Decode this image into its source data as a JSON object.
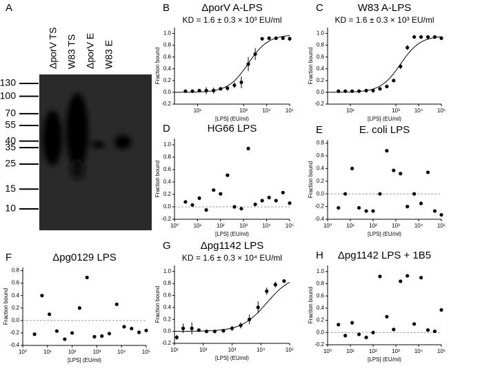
{
  "blot": {
    "panel": "A",
    "lanes": [
      "ΔporV TS",
      "W83 TS",
      "ΔporV E",
      "W83 E"
    ],
    "markers": [
      130,
      100,
      70,
      55,
      40,
      35,
      25,
      15,
      10
    ]
  },
  "chart_data": [
    {
      "type": "scatter",
      "panel": "B",
      "title": "ΔporV A-LPS",
      "annotation": "KD = 1.6 ± 0.3 × 10³ EU/ml",
      "x_label": "[LPS] (EU/ml)",
      "y_label": "Fraction bound",
      "color": "#000000",
      "x": [
        3,
        6,
        12,
        24,
        50,
        100,
        200,
        400,
        800,
        1600,
        3200,
        6400,
        12800,
        25600,
        51200,
        100000
      ],
      "values": [
        0.02,
        0.02,
        0.03,
        0.03,
        0.03,
        0.06,
        0.07,
        0.12,
        0.17,
        0.48,
        0.65,
        0.91,
        0.92,
        0.92,
        0.92,
        0.91
      ],
      "errors": [
        0.02,
        0.03,
        0.02,
        0.06,
        0.05,
        0.03,
        0.04,
        0.05,
        0.1,
        0.12,
        0.1,
        0.02,
        0.02,
        0.02,
        0.02,
        0.04
      ],
      "fit": {
        "kd": 1600,
        "top": 0.98
      },
      "xlim": [
        1,
        100000
      ],
      "xticks": [
        {
          "value": 10,
          "label": "10¹"
        },
        {
          "value": 1000,
          "label": "10³"
        },
        {
          "value": 10000,
          "label": "10⁴"
        },
        {
          "value": 100000,
          "label": "10⁵"
        }
      ],
      "ylim": [
        -0.2,
        1.1
      ],
      "yticks": [
        -0.2,
        {
          "value": 0,
          "label": "0.0"
        },
        0.2,
        0.4,
        0.6,
        0.8,
        {
          "value": 1,
          "label": "1.0"
        }
      ],
      "xscale": "log",
      "zero_line": false
    },
    {
      "type": "scatter",
      "panel": "C",
      "title": "W83 A-LPS",
      "annotation": "KD = 1.6 ± 0.3 × 10³ EU/ml",
      "x_label": "[LPS] (EU/ml)",
      "y_label": "Fraction bound",
      "color": "#000000",
      "x": [
        3,
        6,
        12,
        24,
        50,
        100,
        200,
        400,
        800,
        1600,
        3200,
        6400,
        12800,
        25600,
        51200,
        100000
      ],
      "values": [
        0.02,
        0.02,
        0.02,
        0.02,
        0.03,
        0.03,
        0.06,
        0.1,
        0.2,
        0.44,
        0.76,
        0.94,
        0.94,
        0.94,
        0.94,
        0.92
      ],
      "errors": [
        0.02,
        0.02,
        0.02,
        0.02,
        0.02,
        0.02,
        0.02,
        0.02,
        0.03,
        0.04,
        0.04,
        0.02,
        0.02,
        0.02,
        0.02,
        0.02
      ],
      "fit": {
        "kd": 1600,
        "top": 0.96
      },
      "xlim": [
        1,
        100000
      ],
      "xticks": [
        {
          "value": 10,
          "label": "10¹"
        },
        {
          "value": 1000,
          "label": "10³"
        },
        {
          "value": 10000,
          "label": "10⁴"
        },
        {
          "value": 100000,
          "label": "10⁵"
        }
      ],
      "ylim": [
        -0.2,
        1.1
      ],
      "yticks": [
        -0.2,
        {
          "value": 0,
          "label": "0.0"
        },
        0.2,
        0.4,
        0.6,
        0.8,
        {
          "value": 1,
          "label": "1.0"
        }
      ],
      "xscale": "log",
      "zero_line": false
    },
    {
      "type": "scatter",
      "panel": "D",
      "title": "HG66 LPS",
      "x_label": "[LPS] (EU/ml)",
      "y_label": "Fraction bound",
      "color": "#000000",
      "x": [
        3,
        6,
        12,
        24,
        50,
        100,
        200,
        400,
        800,
        1600,
        3200,
        6400,
        12800,
        25600,
        51200,
        100000
      ],
      "values": [
        0.08,
        0.03,
        0.14,
        -0.05,
        0.27,
        0.21,
        0.51,
        0.0,
        -0.03,
        0.94,
        0.04,
        0.1,
        0.15,
        0.1,
        0.23,
        0.06
      ],
      "xlim": [
        1,
        100000
      ],
      "xticks": [
        {
          "value": 1,
          "label": "10⁰"
        },
        {
          "value": 10,
          "label": "10¹"
        },
        {
          "value": 100,
          "label": "10²"
        },
        {
          "value": 1000,
          "label": "10³"
        },
        {
          "value": 10000,
          "label": "10⁴"
        },
        {
          "value": 100000,
          "label": "10⁵"
        }
      ],
      "ylim": [
        -0.2,
        1.1
      ],
      "yticks": [
        -0.2,
        {
          "value": 0,
          "label": "0.0"
        },
        0.2,
        0.4,
        0.6,
        0.8,
        {
          "value": 1,
          "label": "1.0"
        }
      ],
      "xscale": "log",
      "zero_line": true
    },
    {
      "type": "scatter",
      "panel": "E",
      "title": "E. coli LPS",
      "x_label": "[LPS] (EU/ml)",
      "y_label": "Fraction bound",
      "color": "#000000",
      "x": [
        3,
        6,
        12,
        24,
        50,
        100,
        200,
        400,
        800,
        1600,
        3200,
        6400,
        12800,
        25600,
        51200,
        100000
      ],
      "values": [
        -0.22,
        0.0,
        0.4,
        -0.22,
        -0.27,
        -0.27,
        0.0,
        0.68,
        0.37,
        0.32,
        -0.2,
        0.0,
        -0.15,
        0.34,
        -0.27,
        -0.33
      ],
      "xlim": [
        1,
        100000
      ],
      "xticks": [
        {
          "value": 1,
          "label": "10⁰"
        },
        {
          "value": 10,
          "label": "10¹"
        },
        {
          "value": 100,
          "label": "10²"
        },
        {
          "value": 1000,
          "label": "10³"
        },
        {
          "value": 10000,
          "label": "10⁴"
        },
        {
          "value": 100000,
          "label": "10⁵"
        }
      ],
      "ylim": [
        -0.4,
        0.85
      ],
      "yticks": [
        -0.4,
        -0.2,
        {
          "value": 0,
          "label": "0.0"
        },
        0.2,
        0.4,
        0.6,
        0.8
      ],
      "xscale": "log",
      "zero_line": true
    },
    {
      "type": "scatter",
      "panel": "F",
      "title": "Δpg0129 LPS",
      "x_label": "[LPS] (EU/ml)",
      "y_label": "Fraction bound",
      "color": "#000000",
      "x": [
        3,
        6,
        12,
        24,
        50,
        100,
        200,
        400,
        800,
        1600,
        3200,
        6400,
        12800,
        25600,
        51200,
        100000
      ],
      "values": [
        -0.22,
        0.4,
        0.1,
        -0.17,
        -0.3,
        -0.2,
        0.2,
        0.69,
        -0.26,
        -0.25,
        -0.21,
        0.26,
        -0.1,
        -0.13,
        -0.19,
        -0.16
      ],
      "xlim": [
        1,
        100000
      ],
      "xticks": [
        {
          "value": 1,
          "label": "10⁰"
        },
        {
          "value": 10,
          "label": "10¹"
        },
        {
          "value": 100,
          "label": "10²"
        },
        {
          "value": 1000,
          "label": "10³"
        },
        {
          "value": 10000,
          "label": "10⁴"
        },
        {
          "value": 100000,
          "label": "10⁵"
        }
      ],
      "ylim": [
        -0.4,
        0.85
      ],
      "yticks": [
        -0.4,
        -0.2,
        {
          "value": 0,
          "label": "0.0"
        },
        0.2,
        0.4,
        0.6,
        0.8
      ],
      "xscale": "log",
      "zero_line": true
    },
    {
      "type": "scatter",
      "panel": "G",
      "title": "Δpg1142 LPS",
      "annotation": "KD = 1.6 ± 0.3 × 10⁴ EU/ml",
      "x_label": "[LPS] (EU/ml)",
      "y_label": "Fraction bound",
      "color": "#000000",
      "x": [
        12,
        20,
        40,
        70,
        130,
        250,
        500,
        1000,
        2000,
        4000,
        8000,
        16000,
        32000,
        64000
      ],
      "values": [
        -0.1,
        0.05,
        0.05,
        0.02,
        0.0,
        0.0,
        0.01,
        0.05,
        0.1,
        0.2,
        0.4,
        0.67,
        0.78,
        0.84
      ],
      "errors": [
        0.04,
        0.08,
        0.1,
        0.03,
        0.03,
        0.03,
        0.03,
        0.04,
        0.05,
        0.08,
        0.1,
        0.06,
        0.05,
        0.03
      ],
      "fit": {
        "kd": 16000,
        "top": 0.95
      },
      "xlim": [
        10,
        100000
      ],
      "xticks": [
        {
          "value": 10,
          "label": "10¹"
        },
        {
          "value": 100,
          "label": "10²"
        },
        {
          "value": 1000,
          "label": "10³"
        },
        {
          "value": 10000,
          "label": "10⁴"
        },
        {
          "value": 100000,
          "label": "10⁵"
        }
      ],
      "ylim": [
        -0.2,
        1.1
      ],
      "yticks": [
        -0.2,
        {
          "value": 0,
          "label": "0.0"
        },
        0.2,
        0.4,
        0.6,
        0.8,
        {
          "value": 1,
          "label": "1.0"
        }
      ],
      "xscale": "log",
      "zero_line": false
    },
    {
      "type": "scatter",
      "panel": "H",
      "title": "Δpg1142 LPS + 1B5",
      "x_label": "[LPS] (EU/ml)",
      "y_label": "Fraction bound",
      "color": "#000000",
      "x": [
        3,
        6,
        12,
        24,
        50,
        100,
        200,
        400,
        800,
        1600,
        3200,
        6400,
        12800,
        25600,
        51200,
        100000
      ],
      "values": [
        0.13,
        -0.05,
        0.16,
        -0.03,
        -0.08,
        0.0,
        0.92,
        0.26,
        0.05,
        0.84,
        0.93,
        0.14,
        0.9,
        0.04,
        0.02,
        0.37
      ],
      "xlim": [
        1,
        100000
      ],
      "xticks": [
        {
          "value": 1,
          "label": "10⁰"
        },
        {
          "value": 10,
          "label": "10¹"
        },
        {
          "value": 100,
          "label": "10²"
        },
        {
          "value": 1000,
          "label": "10³"
        },
        {
          "value": 10000,
          "label": "10⁴"
        },
        {
          "value": 100000,
          "label": "10⁵"
        }
      ],
      "ylim": [
        -0.2,
        1.1
      ],
      "yticks": [
        -0.2,
        {
          "value": 0,
          "label": "0.0"
        },
        0.2,
        0.4,
        0.6,
        0.8,
        {
          "value": 1,
          "label": "1.0"
        }
      ],
      "xscale": "log",
      "zero_line": true
    }
  ]
}
